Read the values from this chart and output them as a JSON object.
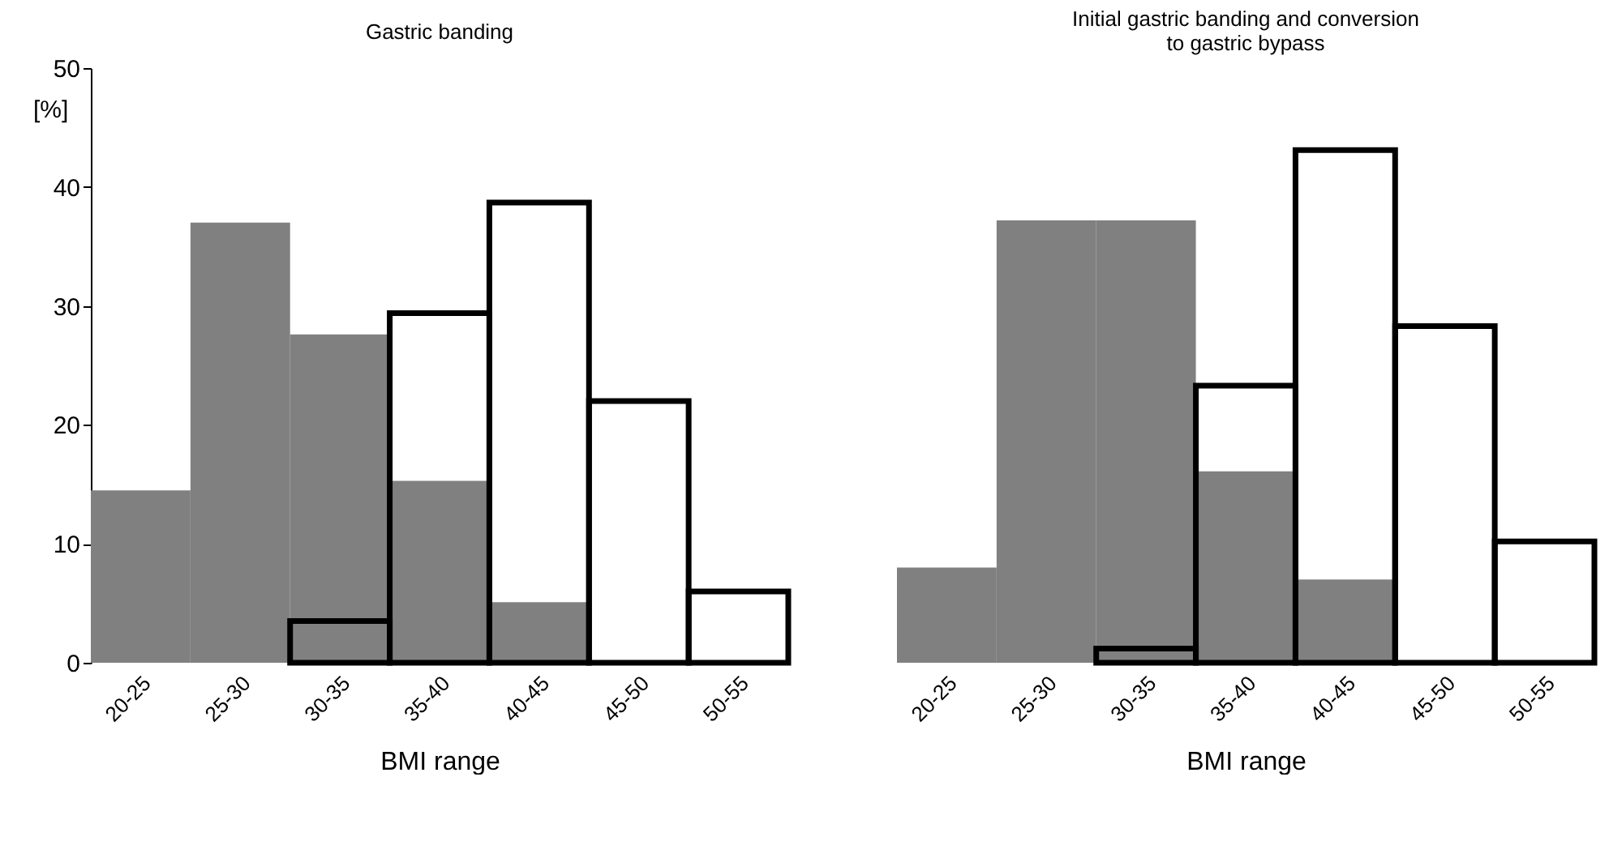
{
  "chart_data": [
    {
      "type": "bar",
      "title": "Gastric banding",
      "xlabel": "BMI range",
      "ylabel": "[%]",
      "categories": [
        "20-25",
        "25-30",
        "30-35",
        "35-40",
        "40-45",
        "45-50",
        "50-55"
      ],
      "series": [
        {
          "color": "#808080",
          "values": [
            14.5,
            37,
            27.6,
            15.3,
            5.1,
            null,
            null
          ]
        },
        {
          "color": "#000000",
          "values": [
            null,
            null,
            3.5,
            29.4,
            38.7,
            22,
            6
          ]
        }
      ],
      "ylim": [
        0,
        50
      ],
      "yticks": [
        0,
        10,
        20,
        30,
        40,
        50
      ]
    },
    {
      "type": "bar",
      "title": "Initial gastric banding and conversion to gastric bypass",
      "xlabel": "BMI range",
      "categories": [
        "20-25",
        "25-30",
        "30-35",
        "35-40",
        "40-45",
        "45-50",
        "50-55"
      ],
      "series": [
        {
          "color": "#808080",
          "values": [
            8,
            37.2,
            37.2,
            16.1,
            7,
            null,
            null
          ]
        },
        {
          "color": "#000000",
          "values": [
            null,
            null,
            1.2,
            23.3,
            43.1,
            28.3,
            10.2
          ]
        }
      ],
      "ylim": [
        0,
        50
      ],
      "yticks": [
        0,
        10,
        20,
        30,
        40,
        50
      ],
      "tick_labels": "x"
    }
  ]
}
